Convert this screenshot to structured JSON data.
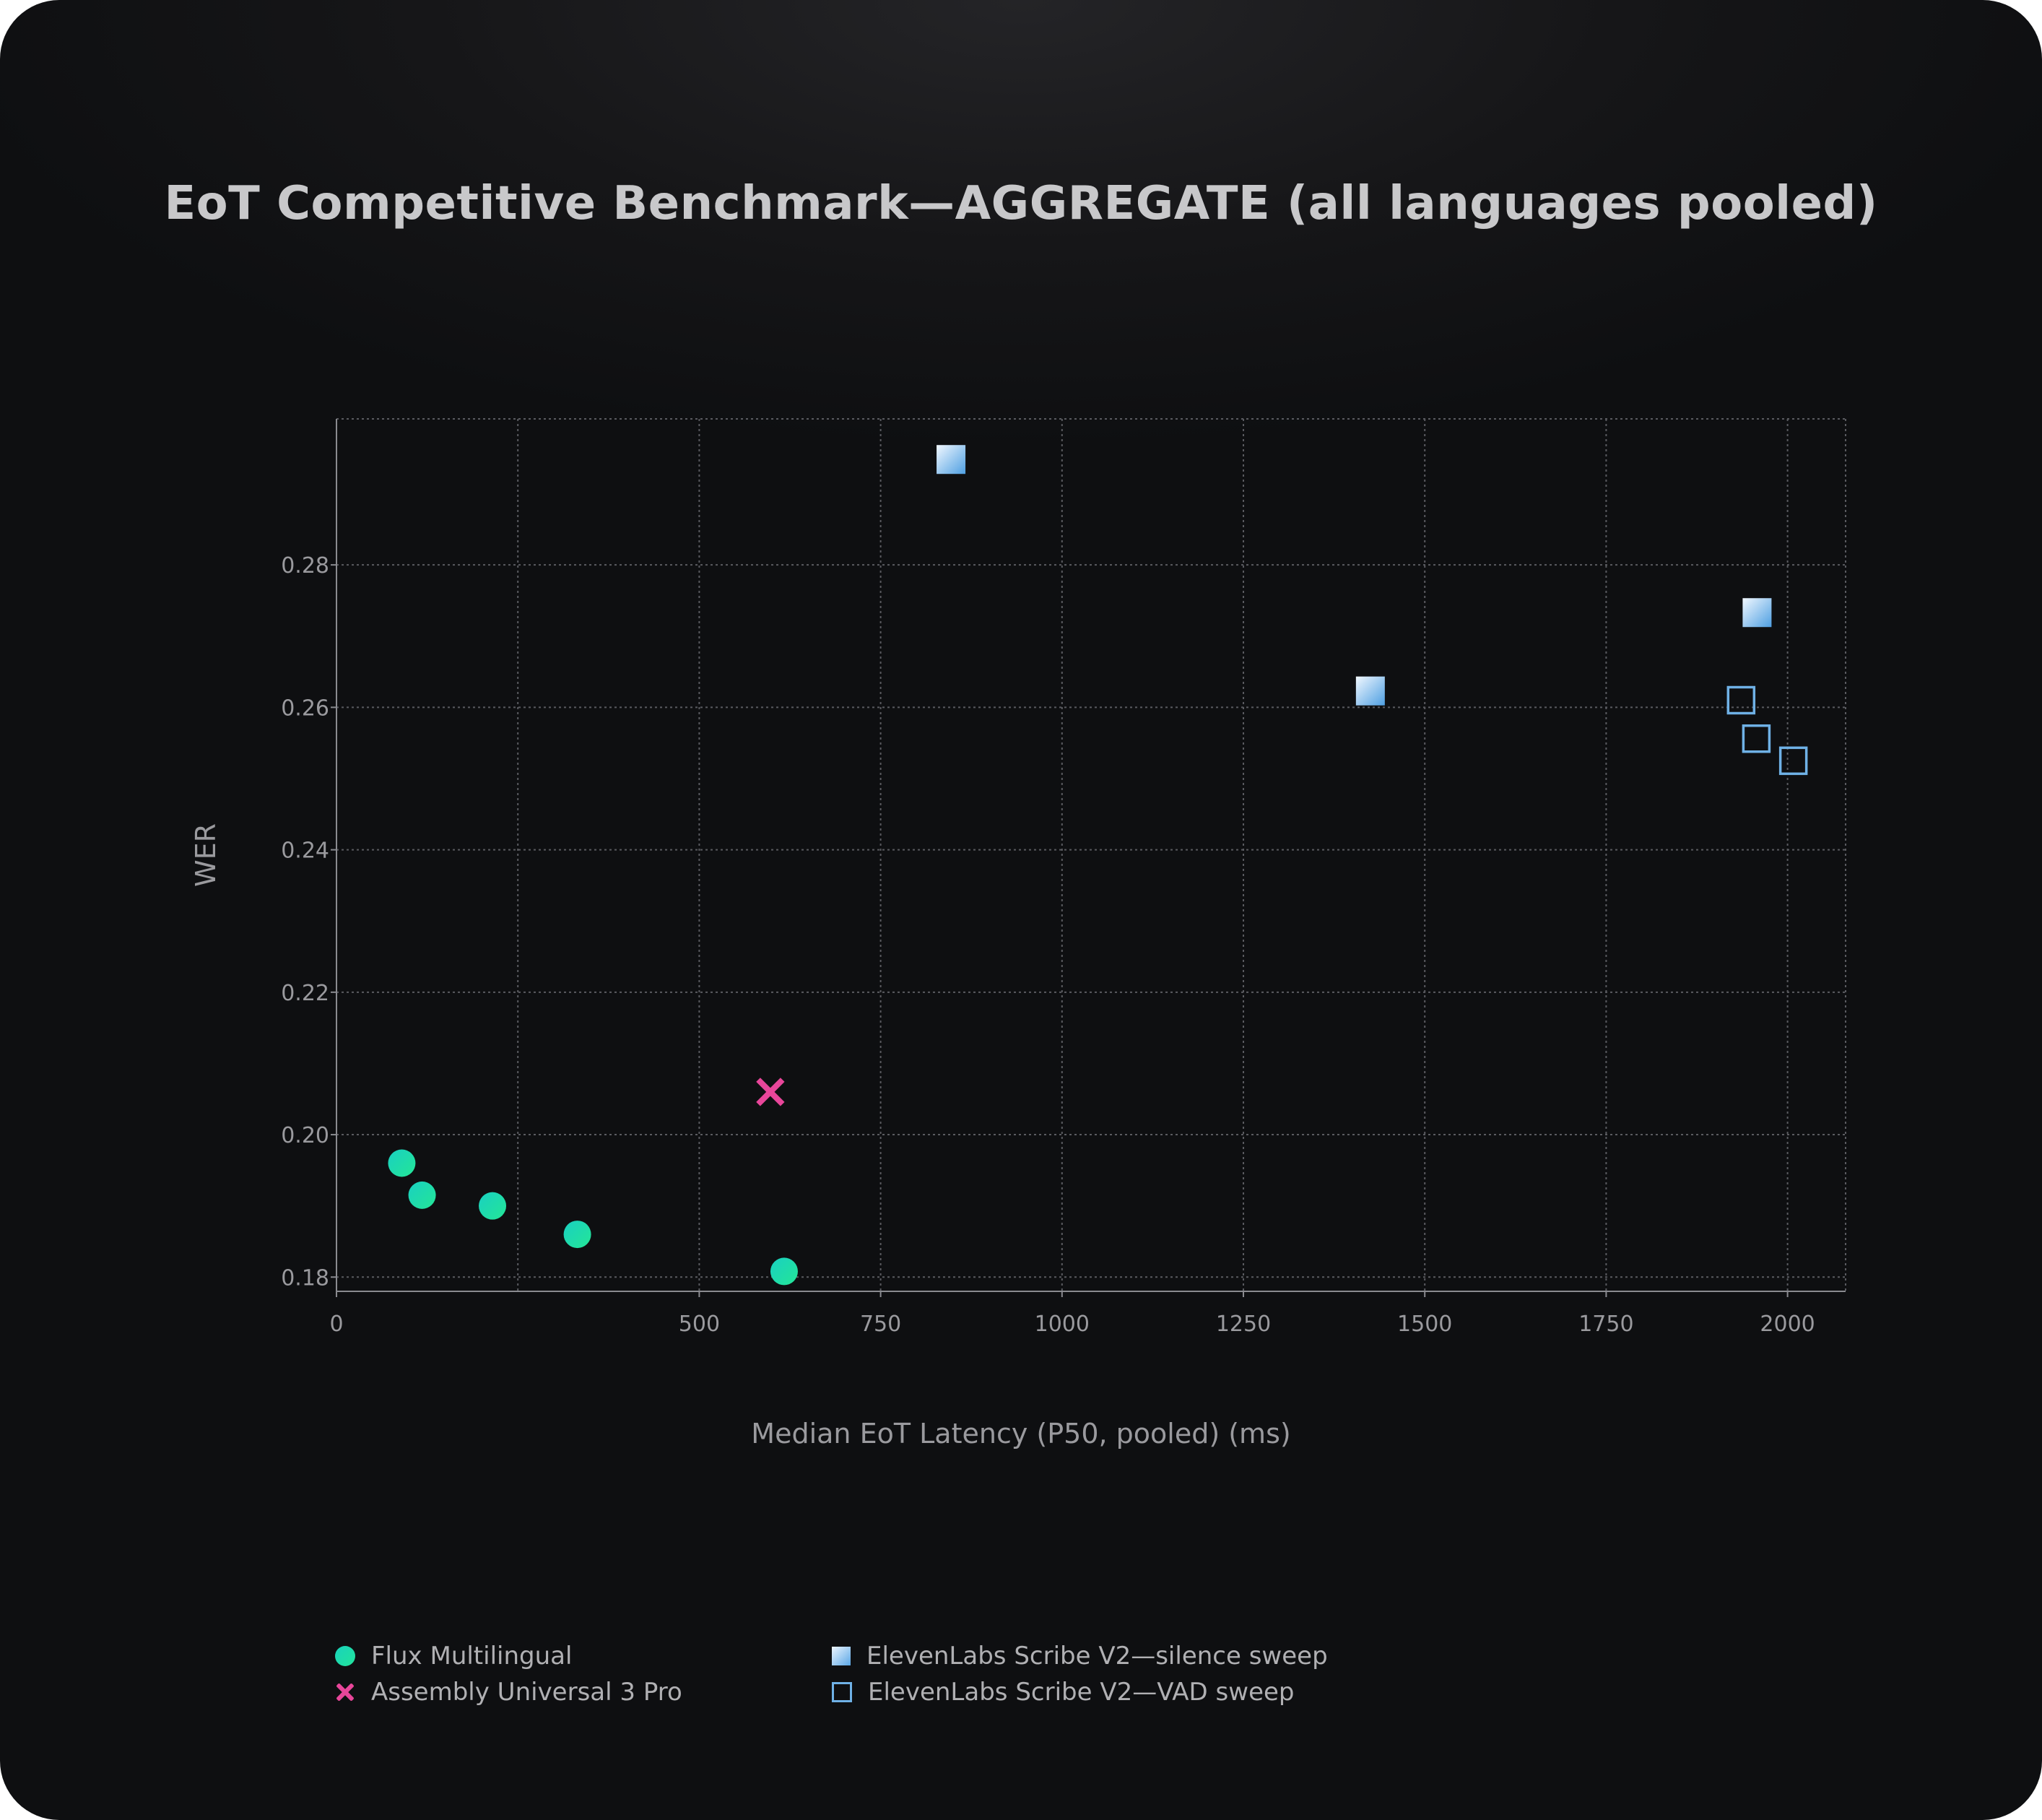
{
  "chart_data": {
    "type": "scatter",
    "title": "EoT Competitive Benchmark—AGGREGATE (all languages pooled)",
    "xlabel": "Median EoT Latency (P50, pooled) (ms)",
    "ylabel": "WER",
    "xlim": [
      0,
      2080
    ],
    "ylim": [
      0.178,
      0.3005
    ],
    "x_ticks": [
      0,
      500,
      750,
      1000,
      1250,
      1500,
      1750,
      2000
    ],
    "x_tick_labels": [
      "0",
      "500",
      "750",
      "1000",
      "1250",
      "1500",
      "1750",
      "2000"
    ],
    "x_grid": [
      250,
      500,
      750,
      1000,
      1250,
      1500,
      1750,
      2000
    ],
    "y_ticks": [
      0.18,
      0.2,
      0.22,
      0.24,
      0.26,
      0.28
    ],
    "y_tick_labels": [
      "0.18",
      "0.20",
      "0.22",
      "0.24",
      "0.26",
      "0.28"
    ],
    "grid": true,
    "legend_position": "bottom",
    "series": [
      {
        "name": "Flux Multilingual",
        "marker": "circle",
        "color": "#1fdcab",
        "points": [
          [
            90,
            0.196
          ],
          [
            118,
            0.1915
          ],
          [
            215,
            0.19
          ],
          [
            332,
            0.186
          ],
          [
            617,
            0.1808
          ]
        ]
      },
      {
        "name": "Assembly Universal 3 Pro",
        "marker": "x",
        "color": "#e8469a",
        "points": [
          [
            598,
            0.206
          ]
        ]
      },
      {
        "name": "ElevenLabs Scribe V2—silence sweep",
        "marker": "square-filled",
        "color": "#8cc4f0",
        "points": [
          [
            847,
            0.2948
          ],
          [
            1425,
            0.2623
          ],
          [
            1958,
            0.2733
          ]
        ]
      },
      {
        "name": "ElevenLabs Scribe V2—VAD sweep",
        "marker": "square-open",
        "color": "#6fb1e6",
        "points": [
          [
            1936,
            0.261
          ],
          [
            1957,
            0.2556
          ],
          [
            2008,
            0.2525
          ]
        ]
      }
    ]
  }
}
